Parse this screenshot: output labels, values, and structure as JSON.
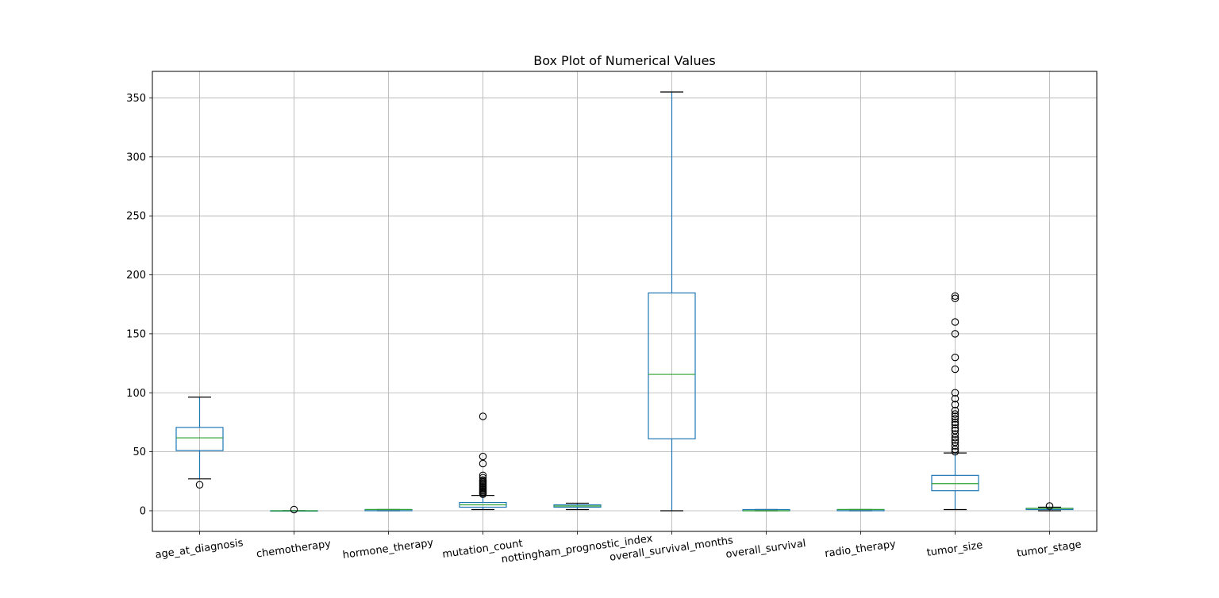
{
  "chart_data": {
    "type": "box",
    "title": "Box Plot of Numerical Values",
    "xlabel": "",
    "ylabel": "",
    "ylim": [
      -17.5,
      372.5
    ],
    "yticks": [
      0,
      50,
      100,
      150,
      200,
      250,
      300,
      350
    ],
    "grid": true,
    "colors": {
      "box": "#1f77b4",
      "median": "#2ca02c",
      "whisker": "#000000",
      "grid": "#b0b0b0",
      "flier": "#000000"
    },
    "categories": [
      "age_at_diagnosis",
      "chemotherapy",
      "hormone_therapy",
      "mutation_count",
      "nottingham_prognostic_index",
      "overall_survival_months",
      "overall_survival",
      "radio_therapy",
      "tumor_size",
      "tumor_stage"
    ],
    "boxes": [
      {
        "whislo": 27,
        "q1": 51,
        "median": 61.8,
        "q3": 70.6,
        "whishi": 96.3,
        "fliers": [
          22
        ]
      },
      {
        "whislo": 0,
        "q1": 0,
        "median": 0,
        "q3": 0,
        "whishi": 0,
        "fliers": [
          1
        ]
      },
      {
        "whislo": 0,
        "q1": 0,
        "median": 1,
        "q3": 1,
        "whishi": 1,
        "fliers": []
      },
      {
        "whislo": 1,
        "q1": 3,
        "median": 5,
        "q3": 7,
        "whishi": 13,
        "fliers": [
          14,
          15,
          16,
          17,
          18,
          19,
          20,
          21,
          22,
          23,
          24,
          25,
          26,
          28,
          30,
          40,
          46,
          80
        ]
      },
      {
        "whislo": 1,
        "q1": 3,
        "median": 4,
        "q3": 5,
        "whishi": 6.4,
        "fliers": []
      },
      {
        "whislo": 0,
        "q1": 61,
        "median": 115.6,
        "q3": 184.7,
        "whishi": 355,
        "fliers": []
      },
      {
        "whislo": 0,
        "q1": 0,
        "median": 0,
        "q3": 1,
        "whishi": 1,
        "fliers": []
      },
      {
        "whislo": 0,
        "q1": 0,
        "median": 1,
        "q3": 1,
        "whishi": 1,
        "fliers": []
      },
      {
        "whislo": 1,
        "q1": 17,
        "median": 23,
        "q3": 30,
        "whishi": 49,
        "fliers": [
          50,
          52,
          55,
          58,
          60,
          62,
          65,
          68,
          70,
          73,
          75,
          78,
          80,
          82,
          85,
          90,
          95,
          100,
          120,
          130,
          150,
          160,
          180,
          182
        ]
      },
      {
        "whislo": 0,
        "q1": 1,
        "median": 2,
        "q3": 2,
        "whishi": 3,
        "fliers": [
          4
        ]
      }
    ]
  }
}
